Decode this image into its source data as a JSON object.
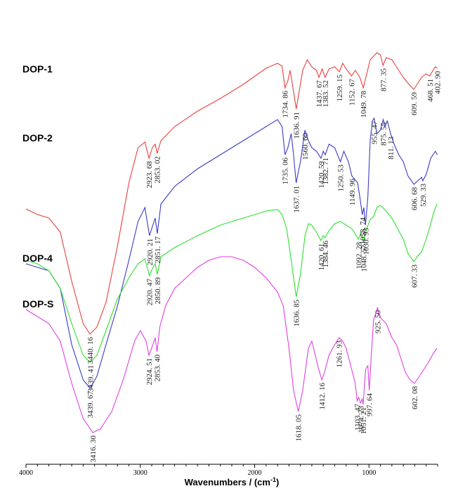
{
  "chart_data": {
    "type": "line",
    "title": "",
    "xlabel": "Wavenumbers / (cm",
    "xlabel_sup": "-1",
    "xlabel_suffix": ")",
    "ylabel": "",
    "xlim": [
      4000,
      400
    ],
    "x_reversed": true,
    "xticks": [
      {
        "value": 4000,
        "label": "4000"
      },
      {
        "value": 3000,
        "label": "3000"
      },
      {
        "value": 2000,
        "label": "2000"
      },
      {
        "value": 1000,
        "label": "1000"
      }
    ],
    "grid": false,
    "legend": "none",
    "series": [
      {
        "name": "DOP-1",
        "color": "#e8403c",
        "points": [
          [
            4000,
            573
          ],
          [
            3900,
            565
          ],
          [
            3800,
            560
          ],
          [
            3700,
            540
          ],
          [
            3600,
            470
          ],
          [
            3500,
            410
          ],
          [
            3440.16,
            395
          ],
          [
            3380,
            405
          ],
          [
            3300,
            440
          ],
          [
            3200,
            520
          ],
          [
            3100,
            610
          ],
          [
            3020,
            660
          ],
          [
            2960,
            668
          ],
          [
            2923.68,
            645
          ],
          [
            2895,
            660
          ],
          [
            2870,
            665
          ],
          [
            2853.02,
            652
          ],
          [
            2820,
            670
          ],
          [
            2700,
            690
          ],
          [
            2500,
            712
          ],
          [
            2300,
            730
          ],
          [
            2100,
            750
          ],
          [
            1900,
            773
          ],
          [
            1800,
            780
          ],
          [
            1760,
            776
          ],
          [
            1734.86,
            745
          ],
          [
            1710,
            755
          ],
          [
            1690,
            770
          ],
          [
            1660,
            740
          ],
          [
            1636.91,
            715
          ],
          [
            1610,
            740
          ],
          [
            1580,
            770
          ],
          [
            1540,
            785
          ],
          [
            1500,
            775
          ],
          [
            1460,
            770
          ],
          [
            1437.67,
            760
          ],
          [
            1410,
            772
          ],
          [
            1383.52,
            760
          ],
          [
            1350,
            772
          ],
          [
            1300,
            775
          ],
          [
            1259.15,
            768
          ],
          [
            1230,
            780
          ],
          [
            1200,
            772
          ],
          [
            1152.67,
            762
          ],
          [
            1120,
            770
          ],
          [
            1080,
            760
          ],
          [
            1049.78,
            745
          ],
          [
            1020,
            765
          ],
          [
            990,
            785
          ],
          [
            960,
            790
          ],
          [
            930,
            795
          ],
          [
            900,
            792
          ],
          [
            877.35,
            777
          ],
          [
            850,
            788
          ],
          [
            800,
            785
          ],
          [
            760,
            775
          ],
          [
            700,
            760
          ],
          [
            650,
            750
          ],
          [
            609.59,
            743
          ],
          [
            580,
            750
          ],
          [
            540,
            760
          ],
          [
            500,
            765
          ],
          [
            468.51,
            762
          ],
          [
            440,
            770
          ],
          [
            420,
            775
          ],
          [
            402.9,
            773
          ]
        ],
        "peak_labels": [
          3440.16,
          2923.68,
          2853.02,
          1734.86,
          1636.91,
          1437.67,
          1383.52,
          1259.15,
          1152.67,
          1049.78,
          877.35,
          609.59,
          468.51,
          402.9
        ]
      },
      {
        "name": "DOP-2",
        "color": "#3a3ac8",
        "points": [
          [
            4000,
            505
          ],
          [
            3900,
            500
          ],
          [
            3800,
            495
          ],
          [
            3700,
            470
          ],
          [
            3600,
            390
          ],
          [
            3500,
            340
          ],
          [
            3439.67,
            328
          ],
          [
            3380,
            345
          ],
          [
            3300,
            390
          ],
          [
            3200,
            445
          ],
          [
            3100,
            510
          ],
          [
            3020,
            565
          ],
          [
            2960,
            585
          ],
          [
            2920.21,
            545
          ],
          [
            2890,
            560
          ],
          [
            2870,
            570
          ],
          [
            2851.17,
            548
          ],
          [
            2820,
            590
          ],
          [
            2700,
            615
          ],
          [
            2500,
            640
          ],
          [
            2300,
            660
          ],
          [
            2100,
            680
          ],
          [
            1900,
            700
          ],
          [
            1800,
            710
          ],
          [
            1760,
            700
          ],
          [
            1735.06,
            660
          ],
          [
            1710,
            670
          ],
          [
            1680,
            690
          ],
          [
            1660,
            660
          ],
          [
            1637.01,
            620
          ],
          [
            1600,
            650
          ],
          [
            1560.6,
            695
          ],
          [
            1530,
            680
          ],
          [
            1500,
            670
          ],
          [
            1460,
            665
          ],
          [
            1420.59,
            655
          ],
          [
            1400,
            665
          ],
          [
            1382.71,
            660
          ],
          [
            1350,
            675
          ],
          [
            1300,
            670
          ],
          [
            1250.53,
            650
          ],
          [
            1220,
            665
          ],
          [
            1180,
            650
          ],
          [
            1149.96,
            630
          ],
          [
            1100,
            620
          ],
          [
            1080,
            600
          ],
          [
            1058.74,
            575
          ],
          [
            1045,
            585
          ],
          [
            1030.93,
            560
          ],
          [
            1010,
            600
          ],
          [
            990,
            680
          ],
          [
            970,
            708
          ],
          [
            955.47,
            712
          ],
          [
            930,
            690
          ],
          [
            900,
            695
          ],
          [
            875.55,
            710
          ],
          [
            860,
            700
          ],
          [
            840,
            708
          ],
          [
            811.13,
            690
          ],
          [
            780,
            675
          ],
          [
            740,
            660
          ],
          [
            700,
            650
          ],
          [
            660,
            630
          ],
          [
            606.68,
            618
          ],
          [
            580,
            622
          ],
          [
            540,
            628
          ],
          [
            529.33,
            623
          ],
          [
            500,
            632
          ],
          [
            460,
            655
          ],
          [
            420,
            665
          ],
          [
            402,
            660
          ]
        ],
        "peak_labels": [
          3439.67,
          2920.21,
          2851.17,
          1735.06,
          1637.01,
          1560.6,
          1420.59,
          1382.71,
          1250.53,
          1149.96,
          1058.74,
          1030.93,
          955.47,
          875.55,
          811.13,
          606.68,
          529.33
        ]
      },
      {
        "name": "DOP-4",
        "color": "#2ee02e",
        "points": [
          [
            4000,
            340
          ],
          [
            3900,
            335
          ],
          [
            3800,
            325
          ],
          [
            3700,
            300
          ],
          [
            3600,
            250
          ],
          [
            3500,
            205
          ],
          [
            3439.41,
            195
          ],
          [
            3380,
            205
          ],
          [
            3300,
            240
          ],
          [
            3200,
            285
          ],
          [
            3100,
            315
          ],
          [
            3020,
            335
          ],
          [
            2960,
            342
          ],
          [
            2920.47,
            318
          ],
          [
            2890,
            330
          ],
          [
            2870,
            335
          ],
          [
            2850.89,
            320
          ],
          [
            2820,
            345
          ],
          [
            2700,
            358
          ],
          [
            2500,
            375
          ],
          [
            2300,
            390
          ],
          [
            2100,
            400
          ],
          [
            1900,
            410
          ],
          [
            1800,
            412
          ],
          [
            1760,
            405
          ],
          [
            1720,
            385
          ],
          [
            1680,
            340
          ],
          [
            1636.85,
            288
          ],
          [
            1600,
            320
          ],
          [
            1560,
            375
          ],
          [
            1530,
            392
          ],
          [
            1500,
            390
          ],
          [
            1460,
            380
          ],
          [
            1420.61,
            368
          ],
          [
            1400,
            375
          ],
          [
            1384.46,
            372
          ],
          [
            1350,
            382
          ],
          [
            1300,
            392
          ],
          [
            1250,
            395
          ],
          [
            1200,
            390
          ],
          [
            1150,
            385
          ],
          [
            1092.28,
            370
          ],
          [
            1070,
            380
          ],
          [
            1048.57,
            366
          ],
          [
            1020,
            385
          ],
          [
            990,
            398
          ],
          [
            960,
            402
          ],
          [
            930,
            415
          ],
          [
            900,
            418
          ],
          [
            850,
            410
          ],
          [
            800,
            400
          ],
          [
            750,
            385
          ],
          [
            700,
            370
          ],
          [
            660,
            350
          ],
          [
            607.33,
            338
          ],
          [
            580,
            345
          ],
          [
            540,
            352
          ],
          [
            500,
            370
          ],
          [
            460,
            392
          ],
          [
            430,
            410
          ],
          [
            405,
            420
          ]
        ],
        "peak_labels": [
          3439.41,
          2920.47,
          2850.89,
          1636.85,
          1420.61,
          1384.46,
          1092.28,
          1048.57,
          607.33
        ]
      },
      {
        "name": "DOP-S",
        "color": "#e040e0",
        "points": [
          [
            4000,
            255
          ],
          [
            3900,
            245
          ],
          [
            3800,
            235
          ],
          [
            3700,
            210
          ],
          [
            3600,
            150
          ],
          [
            3500,
            100
          ],
          [
            3416.3,
            80
          ],
          [
            3350,
            85
          ],
          [
            3250,
            110
          ],
          [
            3150,
            155
          ],
          [
            3050,
            210
          ],
          [
            3000,
            225
          ],
          [
            2950,
            210
          ],
          [
            2924.51,
            190
          ],
          [
            2890,
            205
          ],
          [
            2870,
            215
          ],
          [
            2853.4,
            195
          ],
          [
            2830,
            230
          ],
          [
            2780,
            260
          ],
          [
            2700,
            285
          ],
          [
            2600,
            300
          ],
          [
            2500,
            315
          ],
          [
            2400,
            325
          ],
          [
            2300,
            330
          ],
          [
            2200,
            330
          ],
          [
            2100,
            325
          ],
          [
            2000,
            315
          ],
          [
            1900,
            300
          ],
          [
            1800,
            280
          ],
          [
            1750,
            260
          ],
          [
            1700,
            200
          ],
          [
            1660,
            140
          ],
          [
            1618.05,
            110
          ],
          [
            1580,
            140
          ],
          [
            1530,
            200
          ],
          [
            1500,
            210
          ],
          [
            1470,
            190
          ],
          [
            1440,
            170
          ],
          [
            1412.16,
            155
          ],
          [
            1390,
            165
          ],
          [
            1350,
            190
          ],
          [
            1300,
            205
          ],
          [
            1261.93,
            215
          ],
          [
            1230,
            210
          ],
          [
            1200,
            200
          ],
          [
            1160,
            175
          ],
          [
            1120,
            150
          ],
          [
            1103.47,
            125
          ],
          [
            1090,
            130
          ],
          [
            1074.23,
            122
          ],
          [
            1060,
            128
          ],
          [
            1051.21,
            120
          ],
          [
            1030,
            170
          ],
          [
            1010,
            175
          ],
          [
            997.64,
            140
          ],
          [
            980,
            190
          ],
          [
            960,
            240
          ],
          [
            940,
            250
          ],
          [
            925.5,
            258
          ],
          [
            910,
            245
          ],
          [
            880,
            240
          ],
          [
            850,
            235
          ],
          [
            800,
            215
          ],
          [
            760,
            205
          ],
          [
            720,
            185
          ],
          [
            680,
            165
          ],
          [
            640,
            155
          ],
          [
            602.08,
            150
          ],
          [
            560,
            160
          ],
          [
            520,
            170
          ],
          [
            480,
            180
          ],
          [
            440,
            192
          ],
          [
            405,
            200
          ]
        ],
        "peak_labels": [
          3416.3,
          2924.51,
          2853.4,
          1618.05,
          1412.16,
          1261.93,
          1103.47,
          1074.23,
          1051.21,
          997.64,
          925.5,
          602.08
        ]
      }
    ],
    "annotations": {
      "DOP-1": [
        "3440. 16",
        "2923. 68",
        "2853. 02",
        "1734. 86",
        "1636. 91",
        "1437. 67",
        "1383. 52",
        "1259. 15",
        "1152. 67",
        "1049. 78",
        "877. 35",
        "609. 59",
        "468. 51",
        "402. 90"
      ],
      "DOP-2": [
        "3439. 67",
        "2920. 21",
        "2851. 17",
        "1735. 06",
        "1637. 01",
        "1560. 60",
        "1420. 59",
        "1382. 71",
        "1250. 53",
        "1149. 96",
        "1058. 74",
        "1030. 93",
        "955. 47",
        "875. 55",
        "811. 13",
        "606. 68",
        "529. 33"
      ],
      "DOP-4": [
        "3439. 41",
        "2920. 47",
        "2850. 89",
        "1636. 85",
        "1420. 61",
        "1384. 46",
        "1092. 28",
        "1048. 57",
        "607. 33"
      ],
      "DOP-S": [
        "3416. 30",
        "2924. 51",
        "2853. 40",
        "1618. 05",
        "1412. 16",
        "1261. 93",
        "1103. 47",
        "1074. 23",
        "1051. 21",
        "997. 64",
        "925. 50",
        "602. 08"
      ]
    }
  }
}
